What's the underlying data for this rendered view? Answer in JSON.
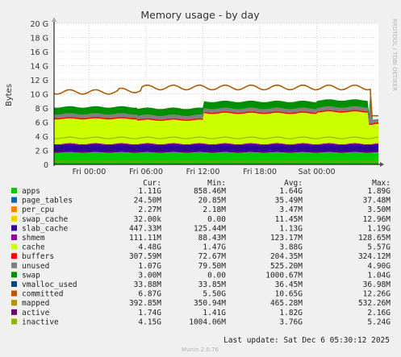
{
  "chart_data": {
    "type": "area",
    "title": "Memory usage - by day",
    "ylabel": "Bytes",
    "side_label": "RRDTOOL / TOBI OETIKER",
    "ylim": [
      0,
      20
    ],
    "y_unit": "G",
    "y_ticks": [
      "0",
      "2 G",
      "4 G",
      "6 G",
      "8 G",
      "10 G",
      "12 G",
      "14 G",
      "16 G",
      "18 G",
      "20 G"
    ],
    "x_ticks": [
      "Fri 00:00",
      "Fri 06:00",
      "Fri 12:00",
      "Fri 18:00",
      "Sat 00:00"
    ],
    "x_tick_hours": [
      0,
      6,
      12,
      18,
      24
    ],
    "x_range_hours": [
      -3.7,
      30.5
    ],
    "grid": true,
    "columns": [
      "Cur:",
      "Min:",
      "Avg:",
      "Max:"
    ],
    "series": [
      {
        "name": "apps",
        "color": "#00cc00",
        "cur": "1.11G",
        "min": "858.46M",
        "avg": "1.64G",
        "max": "1.89G"
      },
      {
        "name": "page_tables",
        "color": "#0066b3",
        "cur": "24.50M",
        "min": "20.85M",
        "avg": "35.49M",
        "max": "37.48M"
      },
      {
        "name": "per_cpu",
        "color": "#ff8000",
        "cur": "2.27M",
        "min": "2.18M",
        "avg": "3.47M",
        "max": "3.50M"
      },
      {
        "name": "swap_cache",
        "color": "#ffcc00",
        "cur": "32.00k",
        "min": "0.00",
        "avg": "11.45M",
        "max": "12.96M"
      },
      {
        "name": "slab_cache",
        "color": "#330099",
        "cur": "447.33M",
        "min": "125.44M",
        "avg": "1.13G",
        "max": "1.19G"
      },
      {
        "name": "shmem",
        "color": "#990099",
        "cur": "111.11M",
        "min": "88.43M",
        "avg": "123.17M",
        "max": "128.65M"
      },
      {
        "name": "cache",
        "color": "#ccff00",
        "cur": "4.48G",
        "min": "1.47G",
        "avg": "3.88G",
        "max": "5.57G"
      },
      {
        "name": "buffers",
        "color": "#ff0000",
        "cur": "307.59M",
        "min": "72.67M",
        "avg": "204.35M",
        "max": "324.12M"
      },
      {
        "name": "unused",
        "color": "#808080",
        "cur": "1.07G",
        "min": "79.50M",
        "avg": "525.20M",
        "max": "4.90G"
      },
      {
        "name": "swap",
        "color": "#008f00",
        "cur": "3.00M",
        "min": "0.00",
        "avg": "1000.67M",
        "max": "1.04G"
      },
      {
        "name": "vmalloc_used",
        "color": "#00487d",
        "cur": "33.88M",
        "min": "33.85M",
        "avg": "36.45M",
        "max": "36.98M"
      },
      {
        "name": "committed",
        "color": "#b35a00",
        "cur": "6.87G",
        "min": "5.50G",
        "avg": "10.65G",
        "max": "12.26G"
      },
      {
        "name": "mapped",
        "color": "#b38f00",
        "cur": "392.85M",
        "min": "350.94M",
        "avg": "465.28M",
        "max": "532.26M"
      },
      {
        "name": "active",
        "color": "#6b006b",
        "cur": "1.74G",
        "min": "1.41G",
        "avg": "1.82G",
        "max": "2.16G"
      },
      {
        "name": "inactive",
        "color": "#8fb300",
        "cur": "4.15G",
        "min": "1004.06M",
        "avg": "3.76G",
        "max": "5.24G"
      }
    ],
    "last_update": "Last update: Sat Dec  6 05:30:12 2025",
    "footer": "Munin 2.0.76"
  }
}
